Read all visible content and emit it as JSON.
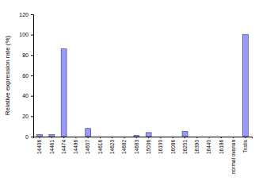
{
  "chart_data": {
    "type": "bar",
    "y_label": "Relative expression rate (%)",
    "categories": [
      "14406",
      "14461",
      "14474",
      "14486",
      "14607",
      "14616",
      "14623",
      "14682",
      "14683",
      "15036",
      "16100",
      "16086",
      "16201",
      "16390",
      "16440",
      "16186",
      "normal ovarian",
      "Testis"
    ],
    "values": [
      2,
      2,
      86,
      0,
      8,
      0,
      0,
      0,
      1,
      4,
      0,
      0,
      5,
      0,
      0,
      0,
      0,
      100
    ],
    "color": "#9999ff",
    "ylim": [
      0,
      120
    ],
    "yticks": [
      0,
      20,
      40,
      60,
      80,
      100,
      120
    ],
    "grid": false
  }
}
